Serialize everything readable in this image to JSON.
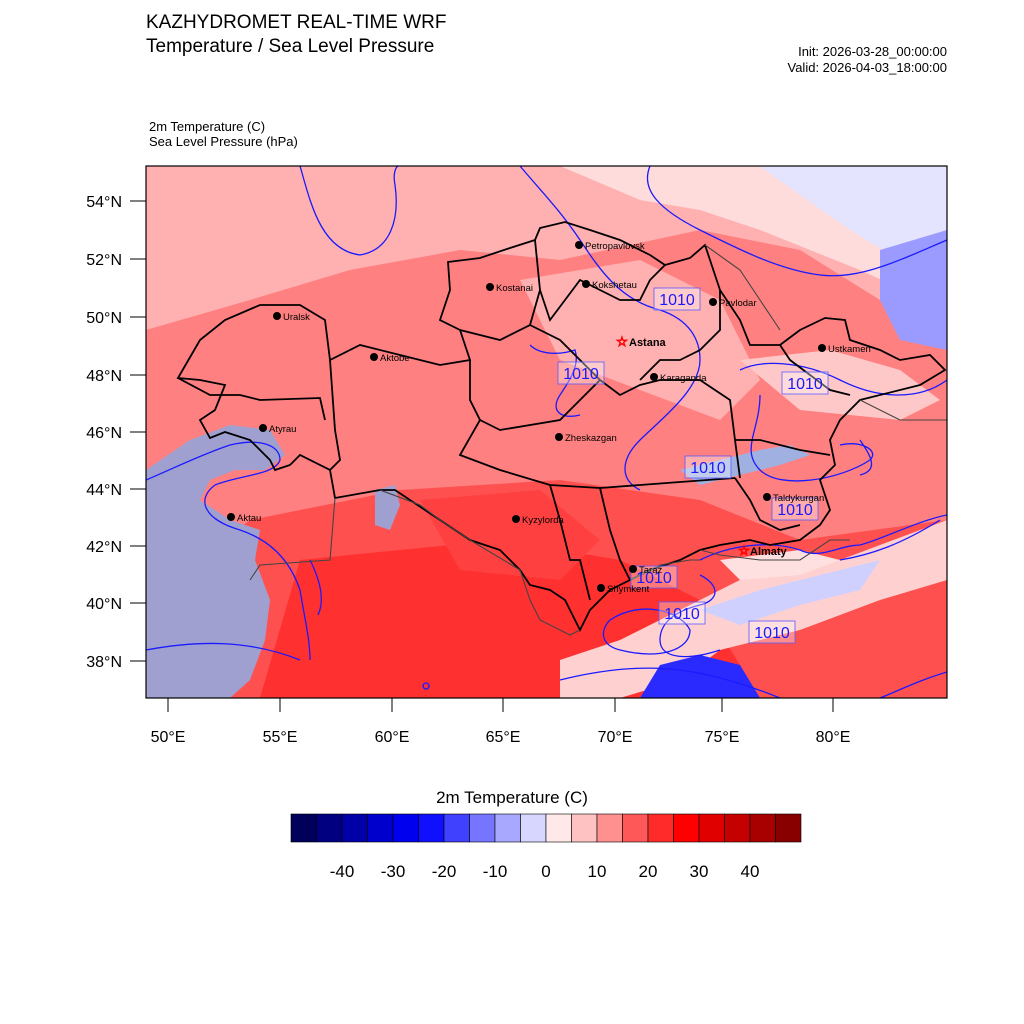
{
  "header": {
    "title_line1": "KAZHYDROMET REAL-TIME WRF",
    "title_line2": "Temperature / Sea Level Pressure",
    "init": "Init: 2026-03-28_00:00:00",
    "valid": "Valid: 2026-04-03_18:00:00",
    "var1": "2m Temperature   (C)",
    "var2": "Sea Level Pressure   (hPa)"
  },
  "map": {
    "lat_labels": [
      "54°N",
      "52°N",
      "50°N",
      "48°N",
      "46°N",
      "44°N",
      "42°N",
      "40°N",
      "38°N"
    ],
    "lon_labels": [
      "50°E",
      "55°E",
      "60°E",
      "65°E",
      "70°E",
      "75°E",
      "80°E"
    ],
    "cities": [
      {
        "name": "Petropavlovsk",
        "capital": false
      },
      {
        "name": "Kostanai",
        "capital": false
      },
      {
        "name": "Kokshetau",
        "capital": false
      },
      {
        "name": "Pavlodar",
        "capital": false
      },
      {
        "name": "Uralsk",
        "capital": false
      },
      {
        "name": "Aktobe",
        "capital": false
      },
      {
        "name": "Astana",
        "capital": true
      },
      {
        "name": "Ustkamen",
        "capital": false
      },
      {
        "name": "Karaganda",
        "capital": false
      },
      {
        "name": "Atyrau",
        "capital": false
      },
      {
        "name": "Zheskazgan",
        "capital": false
      },
      {
        "name": "Taldykurgan",
        "capital": false
      },
      {
        "name": "Aktau",
        "capital": false
      },
      {
        "name": "Kyzylorda",
        "capital": false
      },
      {
        "name": "Almaty",
        "capital": true
      },
      {
        "name": "Taraz",
        "capital": false
      },
      {
        "name": "Shymkent",
        "capital": false
      }
    ],
    "pressure_label": "1010"
  },
  "colorbar": {
    "title": "2m Temperature  (C)",
    "labels": [
      "-40",
      "-30",
      "-20",
      "-10",
      "0",
      "10",
      "20",
      "30",
      "40"
    ],
    "colors": [
      "#00005a",
      "#000080",
      "#0000a6",
      "#0000cc",
      "#0000ee",
      "#1010ff",
      "#4040ff",
      "#7575ff",
      "#a8a8ff",
      "#d6d6ff",
      "#ffe8e8",
      "#ffc2c2",
      "#ff9090",
      "#ff5858",
      "#ff2a2a",
      "#ff0000",
      "#e00000",
      "#c40000",
      "#a80000",
      "#880000"
    ]
  }
}
